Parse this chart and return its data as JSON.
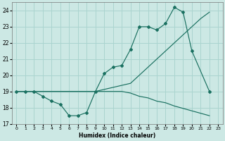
{
  "xlabel": "Humidex (Indice chaleur)",
  "bg_color": "#cce8e4",
  "grid_color": "#aad4cf",
  "line_color": "#1a7060",
  "xlim": [
    -0.5,
    23.5
  ],
  "ylim": [
    17.0,
    24.5
  ],
  "xticks": [
    0,
    1,
    2,
    3,
    4,
    5,
    6,
    7,
    8,
    9,
    10,
    11,
    12,
    13,
    14,
    15,
    16,
    17,
    18,
    19,
    20,
    21,
    22,
    23
  ],
  "yticks": [
    17,
    18,
    19,
    20,
    21,
    22,
    23,
    24
  ],
  "line1_x": [
    0,
    1,
    2,
    3,
    4,
    5,
    6,
    7,
    8,
    9,
    10,
    11,
    12,
    13,
    14,
    15,
    16,
    17,
    18,
    19,
    20,
    22
  ],
  "line1_y": [
    19.0,
    19.0,
    19.0,
    18.7,
    18.4,
    18.2,
    17.5,
    17.5,
    17.7,
    19.0,
    20.1,
    20.5,
    20.6,
    21.6,
    23.0,
    23.0,
    22.8,
    23.2,
    24.2,
    23.9,
    21.5,
    19.0
  ],
  "line2_x": [
    0,
    2,
    9,
    13,
    14,
    15,
    16,
    17,
    18,
    19,
    20,
    21,
    22
  ],
  "line2_y": [
    19.0,
    19.0,
    19.0,
    19.5,
    20.0,
    20.5,
    21.0,
    21.5,
    22.0,
    22.5,
    23.0,
    23.5,
    23.9
  ],
  "line3_x": [
    0,
    2,
    9,
    10,
    11,
    12,
    13,
    14,
    15,
    16,
    17,
    18,
    19,
    20,
    21,
    22
  ],
  "line3_y": [
    19.0,
    19.0,
    19.0,
    19.0,
    19.0,
    19.0,
    18.9,
    18.7,
    18.6,
    18.4,
    18.3,
    18.1,
    17.95,
    17.8,
    17.65,
    17.5
  ]
}
